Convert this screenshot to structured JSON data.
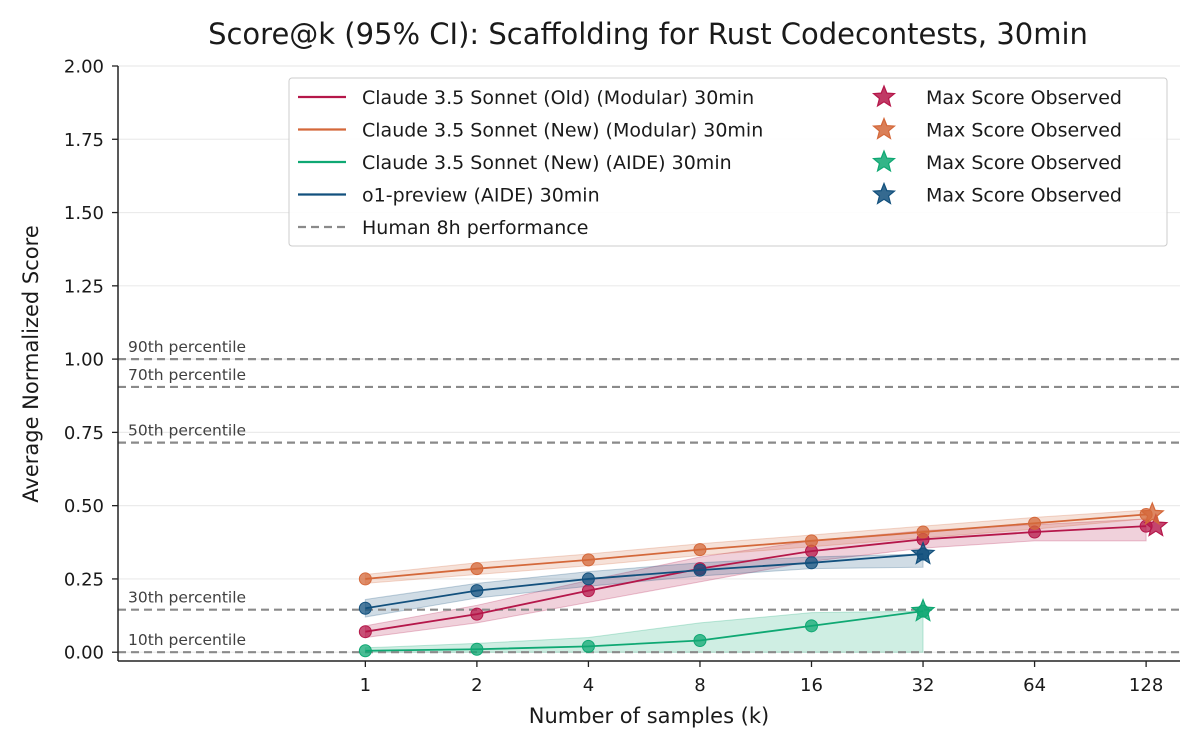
{
  "chart_data": {
    "type": "line",
    "title": "Score@k (95% CI): Scaffolding for Rust Codecontests, 30min",
    "xlabel": "Number of samples (k)",
    "ylabel": "Average Normalized Score",
    "x_scale": "log2",
    "x": [
      1,
      2,
      4,
      8,
      16,
      32,
      64,
      128
    ],
    "x_tick_labels": [
      "1",
      "2",
      "4",
      "8",
      "16",
      "32",
      "64",
      "128"
    ],
    "xlim": [
      0.215,
      158
    ],
    "ylim": [
      -0.03,
      2.0
    ],
    "y_ticks": [
      0.0,
      0.25,
      0.5,
      0.75,
      1.0,
      1.25,
      1.5,
      1.75,
      2.0
    ],
    "y_tick_labels": [
      "0.00",
      "0.25",
      "0.50",
      "0.75",
      "1.00",
      "1.25",
      "1.50",
      "1.75",
      "2.00"
    ],
    "grid": "horizontal",
    "legend_position": "top-right",
    "series": [
      {
        "name": "Claude 3.5 Sonnet (Old) (Modular) 30min",
        "color": "#b5174a",
        "x": [
          1,
          2,
          4,
          8,
          16,
          32,
          64,
          128
        ],
        "values": [
          0.07,
          0.13,
          0.21,
          0.285,
          0.345,
          0.385,
          0.41,
          0.43
        ],
        "ci_lower": [
          0.05,
          0.1,
          0.17,
          0.24,
          0.31,
          0.355,
          0.38,
          0.38
        ],
        "ci_upper": [
          0.09,
          0.16,
          0.245,
          0.325,
          0.38,
          0.415,
          0.435,
          0.455
        ],
        "max_score_observed": {
          "x": 136,
          "value": 0.43
        }
      },
      {
        "name": "Claude 3.5 Sonnet (New) (Modular) 30min",
        "color": "#d4683a",
        "x": [
          1,
          2,
          4,
          8,
          16,
          32,
          64,
          128
        ],
        "values": [
          0.25,
          0.285,
          0.315,
          0.35,
          0.38,
          0.41,
          0.44,
          0.47
        ],
        "ci_lower": [
          0.235,
          0.265,
          0.295,
          0.33,
          0.36,
          0.39,
          0.42,
          0.455
        ],
        "ci_upper": [
          0.265,
          0.305,
          0.335,
          0.37,
          0.4,
          0.43,
          0.46,
          0.485
        ],
        "max_score_observed": {
          "x": 133,
          "value": 0.47
        }
      },
      {
        "name": "Claude 3.5 Sonnet (New) (AIDE) 30min",
        "color": "#0fa873",
        "x": [
          1,
          2,
          4,
          8,
          16,
          32
        ],
        "values": [
          0.005,
          0.01,
          0.02,
          0.04,
          0.09,
          0.14
        ],
        "ci_lower": [
          0.0,
          0.0,
          0.0,
          0.0,
          0.0,
          0.0
        ],
        "ci_upper": [
          0.015,
          0.03,
          0.05,
          0.1,
          0.135,
          0.14
        ],
        "max_score_observed": {
          "x": 32,
          "value": 0.14
        }
      },
      {
        "name": "o1-preview (AIDE) 30min",
        "color": "#12507d",
        "x": [
          1,
          2,
          4,
          8,
          16,
          32
        ],
        "values": [
          0.15,
          0.21,
          0.25,
          0.28,
          0.305,
          0.335
        ],
        "ci_lower": [
          0.12,
          0.185,
          0.225,
          0.26,
          0.285,
          0.29
        ],
        "ci_upper": [
          0.18,
          0.235,
          0.275,
          0.305,
          0.325,
          0.335
        ],
        "max_score_observed": {
          "x": 32,
          "value": 0.335
        }
      }
    ],
    "human_percentiles": [
      {
        "label": "90th percentile",
        "value": 1.0
      },
      {
        "label": "70th percentile",
        "value": 0.905
      },
      {
        "label": "50th percentile",
        "value": 0.715
      },
      {
        "label": "30th percentile",
        "value": 0.145
      },
      {
        "label": "10th percentile",
        "value": 0.0
      }
    ],
    "human_line_color": "#8a8a8a",
    "legend": {
      "lines": [
        "Claude 3.5 Sonnet (Old) (Modular) 30min",
        "Claude 3.5 Sonnet (New) (Modular) 30min",
        "Claude 3.5 Sonnet (New) (AIDE) 30min",
        "o1-preview (AIDE) 30min",
        "Human 8h performance"
      ],
      "stars": [
        "Max Score Observed",
        "Max Score Observed",
        "Max Score Observed",
        "Max Score Observed"
      ]
    }
  }
}
